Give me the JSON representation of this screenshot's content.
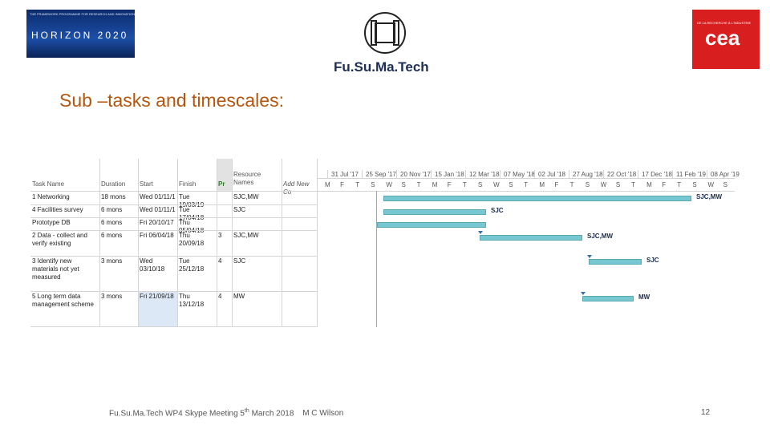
{
  "header": {
    "horizon_tagline": "THE FRAMEWORK PROGRAMME FOR RESEARCH AND INNOVATION",
    "horizon": "HORIZON 2020",
    "logo": "Fu.Su.Ma.Tech",
    "cea_tagline": "DE LA RECHERCHE À L'INDUSTRIE",
    "cea": "cea"
  },
  "title": "Sub –tasks and timescales:",
  "table": {
    "columns": [
      "Task Name",
      "Duration",
      "Start",
      "Finish",
      "Pr",
      "Resource Names",
      "Add New Co"
    ],
    "rows": [
      [
        "1 Networking",
        "18 mons",
        "Wed 01/11/1",
        "Tue 19/03/19",
        "",
        "SJC,MW"
      ],
      [
        "4 Facilities survey",
        "6 mons",
        "Wed 01/11/1",
        "Tue 17/04/18",
        "",
        "SJC"
      ],
      [
        "Prototype DB",
        "6 mons",
        "Fri 20/10/17",
        "Thu 05/04/18",
        "",
        ""
      ],
      [
        "2 Data - collect and verify existing",
        "6 mons",
        "Fri 06/04/18",
        "Thu 20/09/18",
        "3",
        "SJC,MW"
      ],
      [
        "3 Identify new materials not yet measured",
        "3 mons",
        "Wed 03/10/18",
        "Tue 25/12/18",
        "4",
        "SJC"
      ],
      [
        "5 Long term data management scheme",
        "3 mons",
        "Fri 21/09/18",
        "Thu 13/12/18",
        "4",
        "MW"
      ]
    ]
  },
  "timeline": {
    "dates": [
      "31 Jul '17",
      "25 Sep '17",
      "20 Nov '17",
      "15 Jan '18",
      "12 Mar '18",
      "07 May '18",
      "02 Jul '18",
      "27 Aug '18",
      "22 Oct '18",
      "17 Dec '18",
      "11 Feb '19",
      "08 Apr '19"
    ],
    "days": [
      "M",
      "F",
      "T",
      "S",
      "W",
      "S",
      "T",
      "M",
      "F",
      "T",
      "S",
      "W",
      "S",
      "T",
      "M",
      "F",
      "T",
      "S",
      "W",
      "S",
      "T",
      "M",
      "F",
      "T",
      "S",
      "W",
      "S"
    ]
  },
  "footer": {
    "text": "Fu.Su.Ma.Tech WP4 Skype Meeting 5",
    "sup": "th",
    "text2": " March 2018",
    "author": "M C Wilson",
    "page": "12"
  }
}
